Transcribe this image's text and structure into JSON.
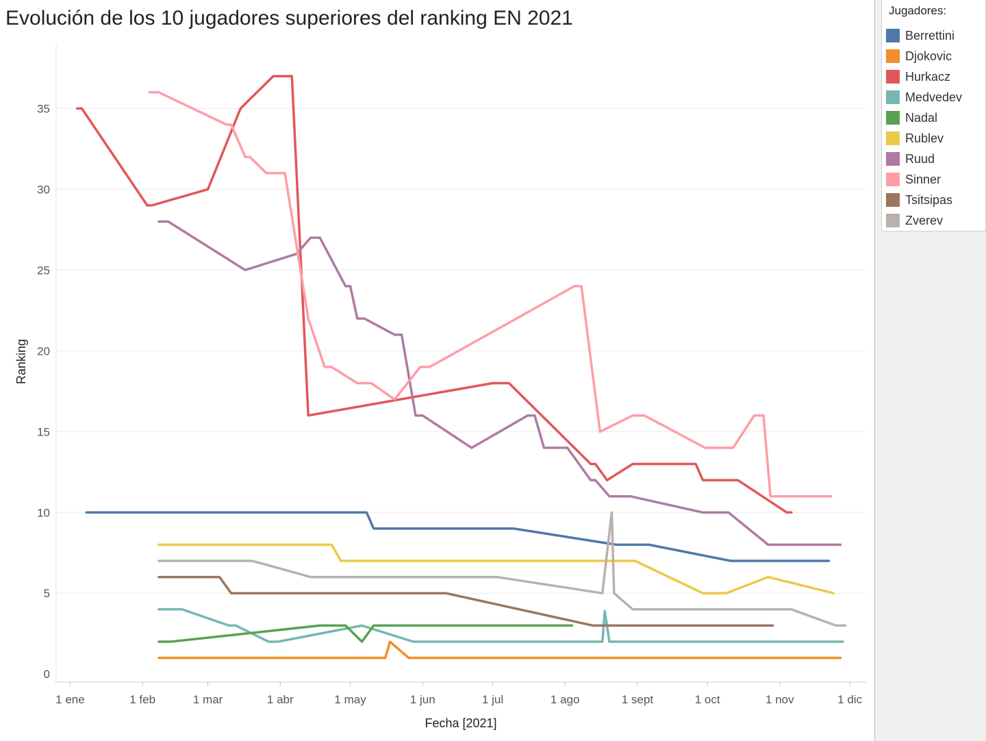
{
  "title": "Evolución de los 10 jugadores superiores del ranking EN 2021",
  "legend": {
    "title": "Jugadores:",
    "items": [
      {
        "label": "Berrettini",
        "color": "#4e79a7"
      },
      {
        "label": "Djokovic",
        "color": "#f28e2b"
      },
      {
        "label": "Hurkacz",
        "color": "#e15759"
      },
      {
        "label": "Medvedev",
        "color": "#76b7b2"
      },
      {
        "label": "Nadal",
        "color": "#59a14f"
      },
      {
        "label": "Rublev",
        "color": "#edc948"
      },
      {
        "label": "Ruud",
        "color": "#b07aa1"
      },
      {
        "label": "Sinner",
        "color": "#ff9da7"
      },
      {
        "label": "Tsitsipas",
        "color": "#9c755f"
      },
      {
        "label": "Zverev",
        "color": "#bab0ac"
      }
    ]
  },
  "chart_data": {
    "type": "line",
    "title": "Evolución de los 10 jugadores superiores del ranking EN 2021",
    "xlabel": "Fecha [2021]",
    "ylabel": "Ranking",
    "x_ticks": [
      "1 ene",
      "1 feb",
      "1 mar",
      "1 abr",
      "1 may",
      "1 jun",
      "1 jul",
      "1 ago",
      "1 sept",
      "1 oct",
      "1 nov",
      "1 dic"
    ],
    "y_ticks": [
      0,
      5,
      10,
      15,
      20,
      25,
      30,
      35
    ],
    "xlim": [
      "2020-12-26",
      "2021-12-08"
    ],
    "ylim": [
      -0.5,
      39
    ],
    "grid": true,
    "legend_position": "right",
    "series": [
      {
        "name": "Berrettini",
        "color": "#4e79a7",
        "points": [
          [
            "2021-01-08",
            10
          ],
          [
            "2021-04-05",
            10
          ],
          [
            "2021-05-08",
            10
          ],
          [
            "2021-05-11",
            9
          ],
          [
            "2021-07-10",
            9
          ],
          [
            "2021-08-23",
            8
          ],
          [
            "2021-09-06",
            8
          ],
          [
            "2021-10-11",
            7
          ],
          [
            "2021-11-22",
            7
          ]
        ]
      },
      {
        "name": "Djokovic",
        "color": "#f28e2b",
        "points": [
          [
            "2021-02-08",
            1
          ],
          [
            "2021-05-16",
            1
          ],
          [
            "2021-05-18",
            2
          ],
          [
            "2021-05-26",
            1
          ],
          [
            "2021-11-27",
            1
          ]
        ]
      },
      {
        "name": "Hurkacz",
        "color": "#e15759",
        "points": [
          [
            "2021-01-04",
            35
          ],
          [
            "2021-01-06",
            35
          ],
          [
            "2021-02-03",
            29
          ],
          [
            "2021-02-05",
            29
          ],
          [
            "2021-03-01",
            30
          ],
          [
            "2021-03-15",
            35
          ],
          [
            "2021-03-29",
            37
          ],
          [
            "2021-04-06",
            37
          ],
          [
            "2021-04-13",
            16
          ],
          [
            "2021-07-01",
            18
          ],
          [
            "2021-07-08",
            18
          ],
          [
            "2021-08-12",
            13
          ],
          [
            "2021-08-14",
            13
          ],
          [
            "2021-08-19",
            12
          ],
          [
            "2021-08-30",
            13
          ],
          [
            "2021-09-26",
            13
          ],
          [
            "2021-09-29",
            12
          ],
          [
            "2021-10-14",
            12
          ],
          [
            "2021-11-04",
            10
          ],
          [
            "2021-11-06",
            10
          ]
        ]
      },
      {
        "name": "Medvedev",
        "color": "#76b7b2",
        "points": [
          [
            "2021-02-08",
            4
          ],
          [
            "2021-02-18",
            4
          ],
          [
            "2021-03-10",
            3
          ],
          [
            "2021-03-13",
            3
          ],
          [
            "2021-03-27",
            2
          ],
          [
            "2021-03-31",
            2
          ],
          [
            "2021-05-06",
            3
          ],
          [
            "2021-05-28",
            2
          ],
          [
            "2021-08-17",
            2
          ],
          [
            "2021-08-18",
            3.9
          ],
          [
            "2021-08-20",
            2
          ],
          [
            "2021-11-28",
            2
          ]
        ]
      },
      {
        "name": "Nadal",
        "color": "#59a14f",
        "points": [
          [
            "2021-02-08",
            2
          ],
          [
            "2021-02-13",
            2
          ],
          [
            "2021-04-18",
            3
          ],
          [
            "2021-04-29",
            3
          ],
          [
            "2021-05-06",
            2
          ],
          [
            "2021-05-11",
            3
          ],
          [
            "2021-08-04",
            3
          ]
        ]
      },
      {
        "name": "Rublev",
        "color": "#edc948",
        "points": [
          [
            "2021-02-08",
            8
          ],
          [
            "2021-04-23",
            8
          ],
          [
            "2021-04-27",
            7
          ],
          [
            "2021-08-31",
            7
          ],
          [
            "2021-09-29",
            5
          ],
          [
            "2021-10-09",
            5
          ],
          [
            "2021-10-27",
            6
          ],
          [
            "2021-11-24",
            5
          ]
        ]
      },
      {
        "name": "Ruud",
        "color": "#b07aa1",
        "points": [
          [
            "2021-02-08",
            28
          ],
          [
            "2021-02-12",
            28
          ],
          [
            "2021-03-17",
            25
          ],
          [
            "2021-04-08",
            26
          ],
          [
            "2021-04-14",
            27
          ],
          [
            "2021-04-18",
            27
          ],
          [
            "2021-04-29",
            24
          ],
          [
            "2021-05-01",
            24
          ],
          [
            "2021-05-04",
            22
          ],
          [
            "2021-05-07",
            22
          ],
          [
            "2021-05-20",
            21
          ],
          [
            "2021-05-23",
            21
          ],
          [
            "2021-05-29",
            16
          ],
          [
            "2021-06-01",
            16
          ],
          [
            "2021-06-22",
            14
          ],
          [
            "2021-07-16",
            16
          ],
          [
            "2021-07-19",
            16
          ],
          [
            "2021-07-23",
            14
          ],
          [
            "2021-08-02",
            14
          ],
          [
            "2021-08-12",
            12
          ],
          [
            "2021-08-14",
            12
          ],
          [
            "2021-08-20",
            11
          ],
          [
            "2021-08-29",
            11
          ],
          [
            "2021-09-29",
            10
          ],
          [
            "2021-10-10",
            10
          ],
          [
            "2021-10-27",
            8
          ],
          [
            "2021-11-27",
            8
          ]
        ]
      },
      {
        "name": "Sinner",
        "color": "#ff9da7",
        "points": [
          [
            "2021-02-04",
            36
          ],
          [
            "2021-02-08",
            36
          ],
          [
            "2021-03-09",
            34
          ],
          [
            "2021-03-11",
            34
          ],
          [
            "2021-03-17",
            32
          ],
          [
            "2021-03-19",
            32
          ],
          [
            "2021-03-26",
            31
          ],
          [
            "2021-04-03",
            31
          ],
          [
            "2021-04-13",
            22
          ],
          [
            "2021-04-20",
            19
          ],
          [
            "2021-04-23",
            19
          ],
          [
            "2021-05-04",
            18
          ],
          [
            "2021-05-10",
            18
          ],
          [
            "2021-05-20",
            17
          ],
          [
            "2021-05-31",
            19
          ],
          [
            "2021-06-04",
            19
          ],
          [
            "2021-08-05",
            24
          ],
          [
            "2021-08-08",
            24
          ],
          [
            "2021-08-16",
            15
          ],
          [
            "2021-08-30",
            16
          ],
          [
            "2021-09-04",
            16
          ],
          [
            "2021-09-30",
            14
          ],
          [
            "2021-10-12",
            14
          ],
          [
            "2021-10-21",
            16
          ],
          [
            "2021-10-25",
            16
          ],
          [
            "2021-10-28",
            11
          ],
          [
            "2021-11-23",
            11
          ]
        ]
      },
      {
        "name": "Tsitsipas",
        "color": "#9c755f",
        "points": [
          [
            "2021-02-08",
            6
          ],
          [
            "2021-03-06",
            6
          ],
          [
            "2021-03-11",
            5
          ],
          [
            "2021-06-11",
            5
          ],
          [
            "2021-08-13",
            3
          ],
          [
            "2021-10-29",
            3
          ]
        ]
      },
      {
        "name": "Zverev",
        "color": "#bab0ac",
        "points": [
          [
            "2021-02-08",
            7
          ],
          [
            "2021-03-20",
            7
          ],
          [
            "2021-04-14",
            6
          ],
          [
            "2021-07-03",
            6
          ],
          [
            "2021-08-17",
            5
          ],
          [
            "2021-08-21",
            10
          ],
          [
            "2021-08-22",
            5
          ],
          [
            "2021-08-30",
            4
          ],
          [
            "2021-11-06",
            4
          ],
          [
            "2021-11-25",
            3
          ],
          [
            "2021-11-29",
            3
          ]
        ]
      }
    ]
  }
}
